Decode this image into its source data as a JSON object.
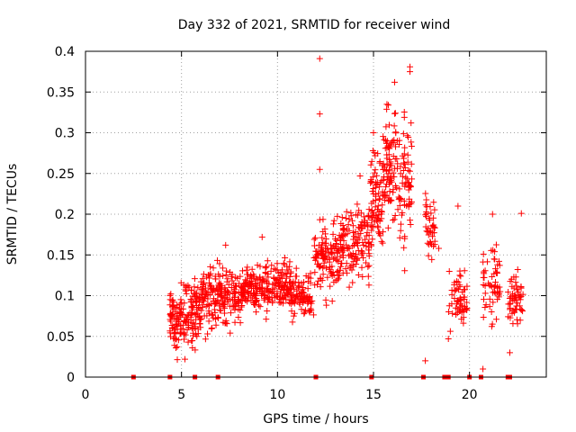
{
  "chart_data": {
    "type": "scatter",
    "title": "Day 332 of 2021, SRMTID for receiver wind",
    "xlabel": "GPS time / hours",
    "ylabel": "SRMTID / TECUs",
    "xlim": [
      0,
      24
    ],
    "ylim": [
      0,
      0.4
    ],
    "xticks": [
      0,
      5,
      10,
      15,
      20
    ],
    "yticks": [
      0,
      0.05,
      0.1,
      0.15,
      0.2,
      0.25,
      0.3,
      0.35,
      0.4
    ],
    "xtick_labels": [
      "0",
      "5",
      "10",
      "15",
      "20"
    ],
    "ytick_labels": [
      "0",
      "0.05",
      "0.1",
      "0.15",
      "0.2",
      "0.25",
      "0.3",
      "0.35",
      "0.4"
    ],
    "grid": true,
    "marker": "+",
    "color": "#ff0000",
    "zero_markers_x": [
      2.5,
      4.4,
      5.7,
      6.9,
      12.0,
      14.9,
      17.6,
      18.7,
      18.8,
      18.9,
      20.0,
      20.6,
      22.0,
      22.1
    ],
    "segments": [
      {
        "x0": 4.4,
        "x1": 5.2,
        "ymean": 0.068,
        "spread": 0.025,
        "n": 90
      },
      {
        "x0": 5.2,
        "x1": 6.0,
        "ymean": 0.082,
        "spread": 0.028,
        "n": 90
      },
      {
        "x0": 6.0,
        "x1": 7.0,
        "ymean": 0.097,
        "spread": 0.025,
        "n": 100
      },
      {
        "x0": 7.0,
        "x1": 8.2,
        "ymean": 0.1,
        "spread": 0.022,
        "n": 110
      },
      {
        "x0": 8.2,
        "x1": 9.5,
        "ymean": 0.11,
        "spread": 0.02,
        "n": 120
      },
      {
        "x0": 9.5,
        "x1": 10.7,
        "ymean": 0.112,
        "spread": 0.02,
        "n": 110
      },
      {
        "x0": 10.7,
        "x1": 11.9,
        "ymean": 0.1,
        "spread": 0.02,
        "n": 90
      },
      {
        "x0": 11.9,
        "x1": 12.9,
        "ymean": 0.145,
        "spread": 0.03,
        "n": 90
      },
      {
        "x0": 12.9,
        "x1": 14.0,
        "ymean": 0.16,
        "spread": 0.032,
        "n": 100
      },
      {
        "x0": 14.0,
        "x1": 14.8,
        "ymean": 0.165,
        "spread": 0.032,
        "n": 70
      },
      {
        "x0": 14.8,
        "x1": 15.5,
        "ymean": 0.215,
        "spread": 0.045,
        "n": 80
      },
      {
        "x0": 15.5,
        "x1": 16.3,
        "ymean": 0.255,
        "spread": 0.045,
        "n": 90
      },
      {
        "x0": 16.3,
        "x1": 17.0,
        "ymean": 0.235,
        "spread": 0.05,
        "n": 70
      },
      {
        "x0": 17.7,
        "x1": 18.2,
        "ymean": 0.185,
        "spread": 0.025,
        "n": 40
      },
      {
        "x0": 18.9,
        "x1": 19.9,
        "ymean": 0.095,
        "spread": 0.02,
        "n": 60
      },
      {
        "x0": 20.7,
        "x1": 21.6,
        "ymean": 0.115,
        "spread": 0.035,
        "n": 55
      },
      {
        "x0": 22.0,
        "x1": 22.8,
        "ymean": 0.095,
        "spread": 0.025,
        "n": 55
      }
    ],
    "outliers": [
      {
        "x": 12.2,
        "y": 0.391
      },
      {
        "x": 12.2,
        "y": 0.323
      },
      {
        "x": 12.2,
        "y": 0.255
      },
      {
        "x": 16.9,
        "y": 0.381
      },
      {
        "x": 16.9,
        "y": 0.375
      },
      {
        "x": 16.1,
        "y": 0.362
      },
      {
        "x": 18.9,
        "y": 0.047
      },
      {
        "x": 17.7,
        "y": 0.02
      },
      {
        "x": 20.7,
        "y": 0.01
      },
      {
        "x": 22.1,
        "y": 0.03
      },
      {
        "x": 22.7,
        "y": 0.201
      },
      {
        "x": 21.2,
        "y": 0.2
      },
      {
        "x": 9.2,
        "y": 0.172
      },
      {
        "x": 7.3,
        "y": 0.162
      },
      {
        "x": 14.3,
        "y": 0.247
      },
      {
        "x": 15.0,
        "y": 0.3
      },
      {
        "x": 15.7,
        "y": 0.335
      },
      {
        "x": 19.4,
        "y": 0.21
      },
      {
        "x": 18.4,
        "y": 0.158
      },
      {
        "x": 21.4,
        "y": 0.071
      }
    ]
  }
}
